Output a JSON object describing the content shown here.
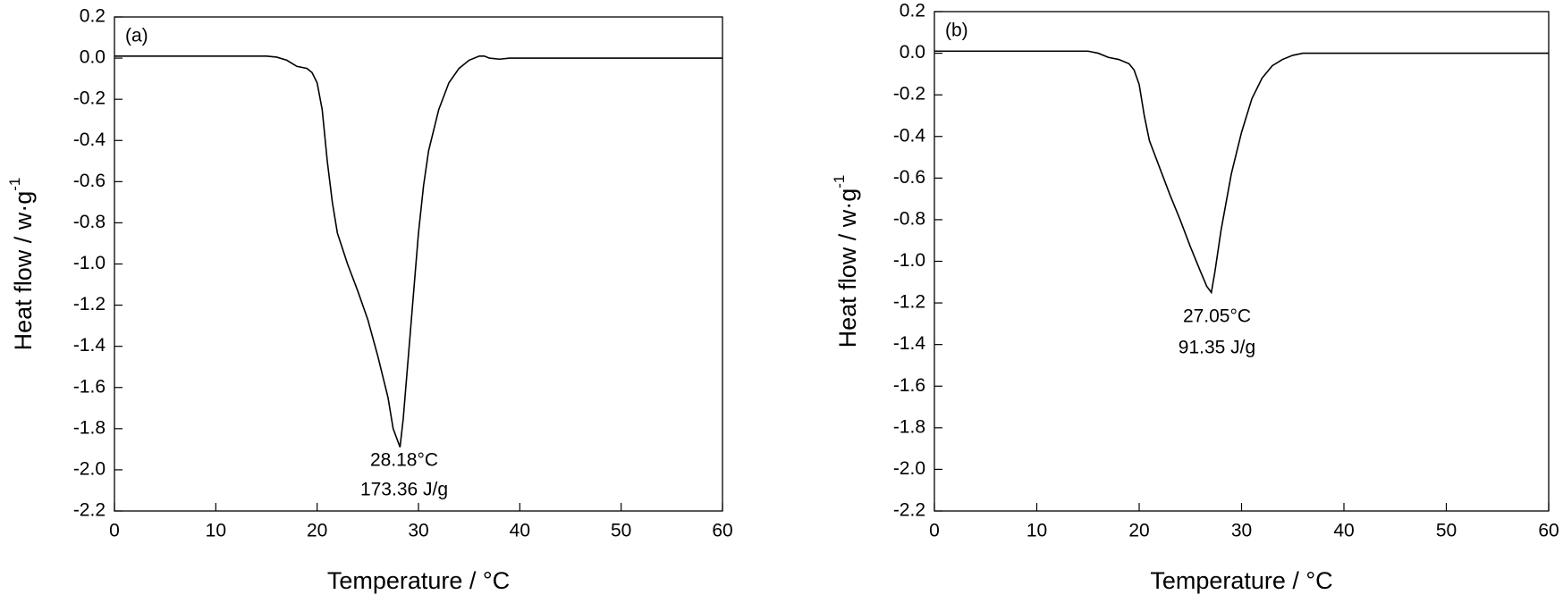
{
  "chart_data": [
    {
      "type": "line",
      "panel_label": "(a)",
      "xlabel": "Temperature / °C",
      "ylabel": "Heat flow / w·g",
      "ylabel_superscript": "-1",
      "annotations": [
        "28.18°C",
        "173.36 J/g"
      ],
      "color": "#000000",
      "xlim": [
        0,
        60
      ],
      "ylim": [
        -2.2,
        0.2
      ],
      "xticks": [
        0,
        10,
        20,
        30,
        40,
        50,
        60
      ],
      "yticks": [
        0.2,
        {
          "value": 0,
          "label": "0.0"
        },
        -0.2,
        -0.4,
        -0.6,
        -0.8,
        {
          "value": -1,
          "label": "-1.0"
        },
        -1.2,
        -1.4,
        -1.6,
        -1.8,
        {
          "value": -2,
          "label": "-2.0"
        },
        -2.2
      ],
      "x": [
        0,
        5,
        10,
        15,
        16,
        17,
        18,
        19,
        19.5,
        20,
        20.5,
        21,
        21.5,
        22,
        23,
        24,
        25,
        26,
        27,
        27.5,
        28.18,
        28.5,
        29,
        29.5,
        30,
        30.5,
        31,
        32,
        33,
        34,
        35,
        36,
        36.5,
        37,
        38,
        39,
        40,
        50,
        60
      ],
      "values": [
        0.01,
        0.01,
        0.01,
        0.01,
        0.005,
        -0.01,
        -0.04,
        -0.05,
        -0.07,
        -0.12,
        -0.25,
        -0.5,
        -0.7,
        -0.85,
        -1.0,
        -1.13,
        -1.27,
        -1.45,
        -1.65,
        -1.8,
        -1.89,
        -1.75,
        -1.45,
        -1.15,
        -0.85,
        -0.62,
        -0.45,
        -0.25,
        -0.12,
        -0.05,
        -0.01,
        0.01,
        0.01,
        0,
        -0.005,
        0,
        0,
        0,
        0
      ]
    },
    {
      "type": "line",
      "panel_label": "(b)",
      "xlabel": "Temperature / °C",
      "ylabel": "Heat flow / w·g",
      "ylabel_superscript": "-1",
      "annotations": [
        "27.05°C",
        "91.35 J/g"
      ],
      "color": "#000000",
      "xlim": [
        0,
        60
      ],
      "ylim": [
        -2.2,
        0.2
      ],
      "xticks": [
        0,
        10,
        20,
        30,
        40,
        50,
        60
      ],
      "yticks": [
        0.2,
        {
          "value": 0,
          "label": "0.0"
        },
        -0.2,
        -0.4,
        -0.6,
        -0.8,
        {
          "value": -1,
          "label": "-1.0"
        },
        -1.2,
        -1.4,
        -1.6,
        -1.8,
        {
          "value": -2,
          "label": "-2.0"
        },
        -2.2
      ],
      "x": [
        0,
        15,
        16,
        17,
        18,
        19,
        19.5,
        20,
        20.5,
        21,
        22,
        23,
        24,
        25,
        26,
        26.6,
        27.05,
        27.4,
        28,
        29,
        30,
        31,
        32,
        33,
        34,
        35,
        36,
        40,
        60
      ],
      "values": [
        0.01,
        0.01,
        0,
        -0.02,
        -0.03,
        -0.05,
        -0.08,
        -0.15,
        -0.3,
        -0.42,
        -0.55,
        -0.68,
        -0.8,
        -0.93,
        -1.05,
        -1.12,
        -1.15,
        -1.05,
        -0.85,
        -0.58,
        -0.38,
        -0.22,
        -0.12,
        -0.06,
        -0.03,
        -0.01,
        0,
        0,
        0
      ]
    }
  ]
}
